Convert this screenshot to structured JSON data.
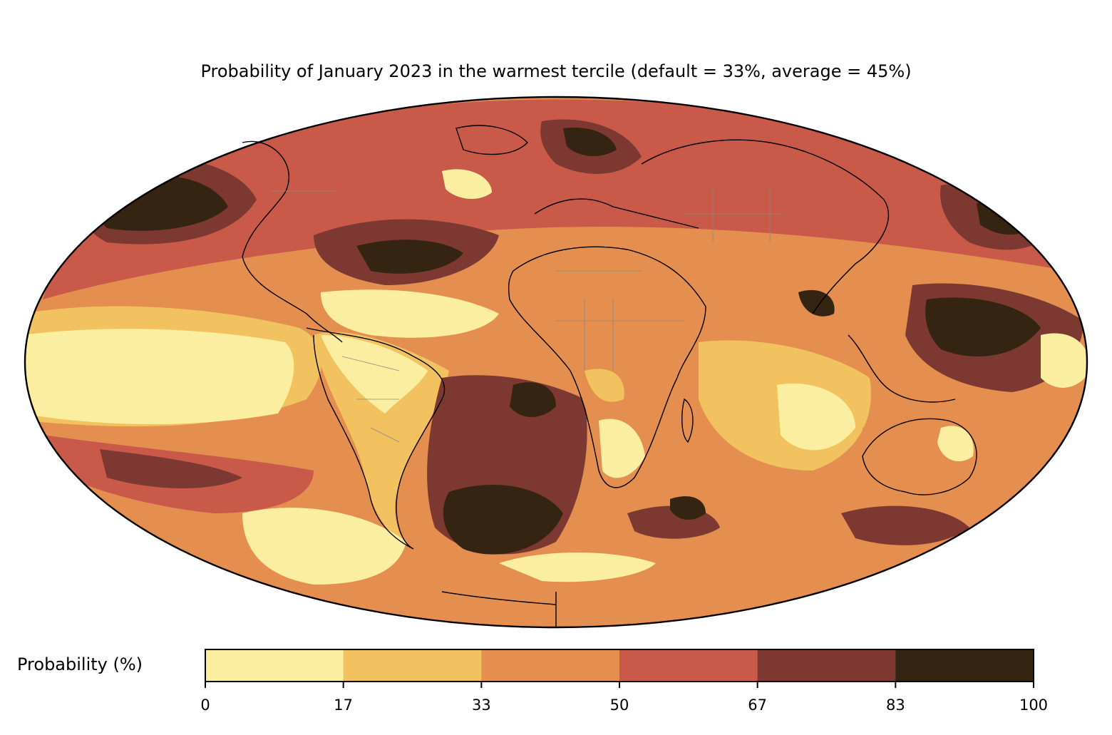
{
  "title": "Probability of January 2023 in the warmest tercile (default = 33%, average = 45%)",
  "colorbar": {
    "label": "Probability (%)",
    "ticks": [
      "0",
      "17",
      "33",
      "50",
      "67",
      "83",
      "100"
    ],
    "bins": [
      {
        "from": 0,
        "to": 17,
        "color": "#fbeea0"
      },
      {
        "from": 17,
        "to": 33,
        "color": "#f2c260"
      },
      {
        "from": 33,
        "to": 50,
        "color": "#e48e50"
      },
      {
        "from": 50,
        "to": 67,
        "color": "#c95a4a"
      },
      {
        "from": 67,
        "to": 83,
        "color": "#7d3831"
      },
      {
        "from": 83,
        "to": 100,
        "color": "#352412"
      }
    ]
  },
  "map": {
    "projection": "Mollweide",
    "variable": "Probability of January 2023 in the warmest tercile",
    "default_percent": 33,
    "average_percent": 45
  }
}
